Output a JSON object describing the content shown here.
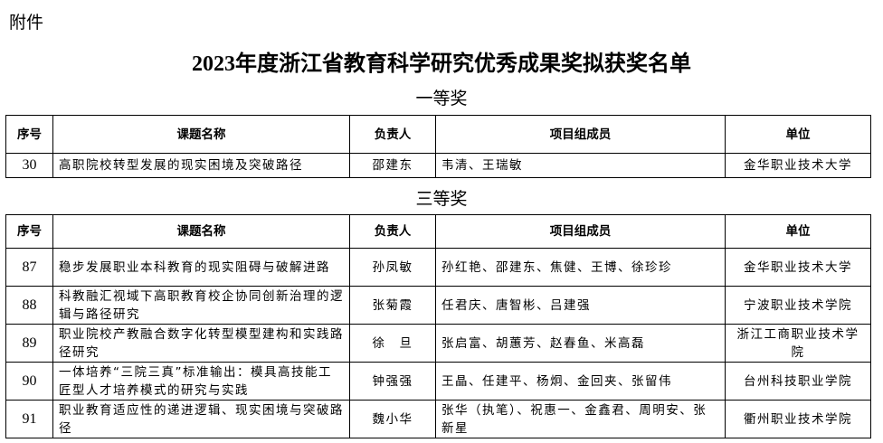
{
  "attachment_label": "附件",
  "title": "2023年度浙江省教育科学研究优秀成果奖拟获奖名单",
  "headers": [
    "序号",
    "课题名称",
    "负责人",
    "项目组成员",
    "单位"
  ],
  "first_prize": {
    "label": "一等奖",
    "rows": [
      {
        "no": "30",
        "topic": "高职院校转型发展的现实困境及突破路径",
        "leader": "邵建东",
        "members": "韦清、王瑞敏",
        "unit": "金华职业技术大学"
      }
    ]
  },
  "third_prize": {
    "label": "三等奖",
    "rows": [
      {
        "no": "87",
        "topic": "稳步发展职业本科教育的现实阻碍与破解进路",
        "leader": "孙凤敏",
        "members": "孙红艳、邵建东、焦健、王博、徐珍珍",
        "unit": "金华职业技术大学"
      },
      {
        "no": "88",
        "topic": "科教融汇视域下高职教育校企协同创新治理的逻辑与路径研究",
        "leader": "张菊霞",
        "members": "任君庆、唐智彬、吕建强",
        "unit": "宁波职业技术学院"
      },
      {
        "no": "89",
        "topic": "职业院校产教融合数字化转型模型建构和实践路径研究",
        "leader": "徐　旦",
        "members": "张启富、胡蕙芳、赵春鱼、米高磊",
        "unit": "浙江工商职业技术学院"
      },
      {
        "no": "90",
        "topic": "一体培养“三院三真”标准输出：模具高技能工匠型人才培养模式的研究与实践",
        "leader": "钟强强",
        "members": "王晶、任建平、杨炯、金回夹、张留伟",
        "unit": "台州科技职业学院"
      },
      {
        "no": "91",
        "topic": "职业教育适应性的递进逻辑、现实困境与突破路径",
        "leader": "魏小华",
        "members": "张华（执笔）、祝惠一、金鑫君、周明安、张新星",
        "unit": "衢州职业技术学院"
      }
    ]
  }
}
